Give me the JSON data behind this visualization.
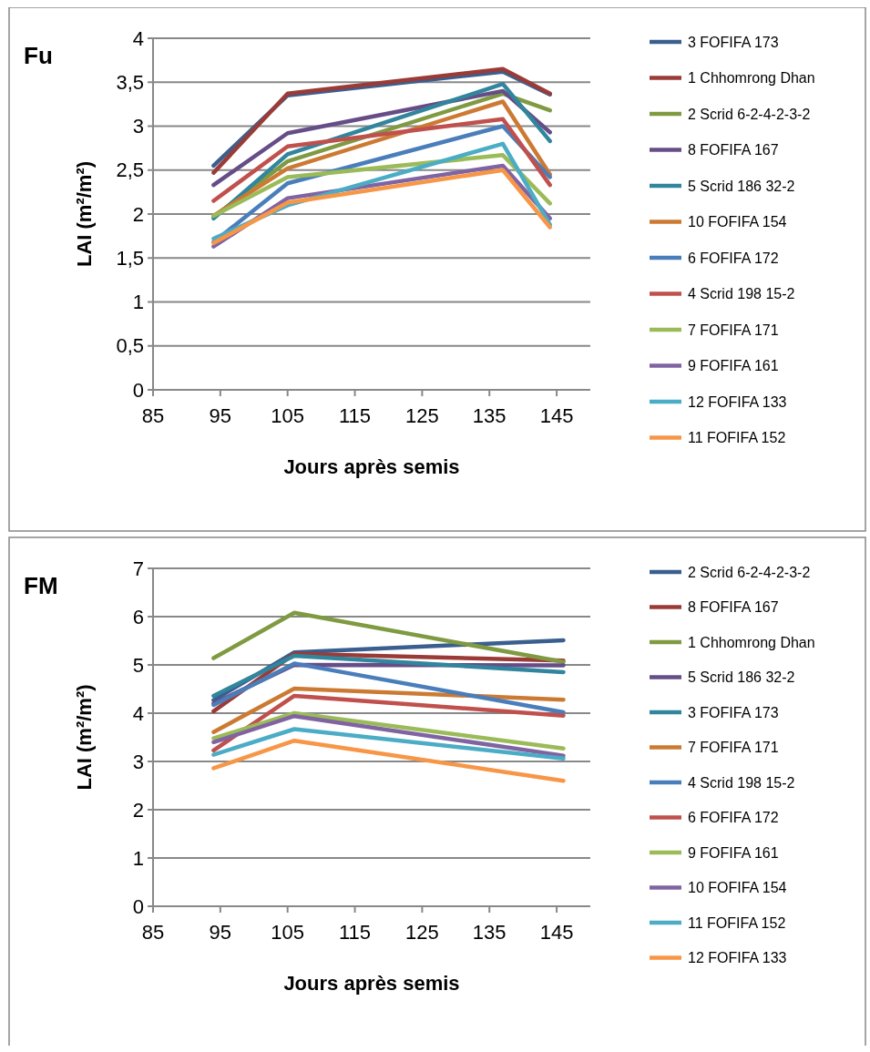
{
  "chart_data": [
    {
      "type": "line",
      "title": "Fu",
      "xlabel": "Jours après semis",
      "ylabel": "LAI (m²/m²)",
      "x": [
        94,
        105,
        137,
        144
      ],
      "xlim": [
        85,
        150
      ],
      "xticks": [
        85,
        95,
        105,
        115,
        125,
        135,
        145
      ],
      "ylim": [
        0,
        4
      ],
      "yticks": [
        0,
        {
          "value": 0.5,
          "label": "0,5"
        },
        1,
        {
          "value": 1.5,
          "label": "1,5"
        },
        2,
        {
          "value": 2.5,
          "label": "2,5"
        },
        3,
        {
          "value": 3.5,
          "label": "3,5"
        },
        4
      ],
      "grid": "y",
      "legend": "right",
      "series": [
        {
          "name": "3 FOFIFA 173",
          "color": "#3a5f8f",
          "values": [
            2.55,
            3.35,
            3.62,
            3.36
          ]
        },
        {
          "name": "1 Chhomrong Dhan",
          "color": "#9b3b37",
          "values": [
            2.47,
            3.37,
            3.65,
            3.37
          ]
        },
        {
          "name": "2 Scrid 6-2-4-2-3-2",
          "color": "#7f9a41",
          "values": [
            1.97,
            2.6,
            3.37,
            3.18
          ]
        },
        {
          "name": "8 FOFIFA 167",
          "color": "#664d88",
          "values": [
            2.33,
            2.92,
            3.4,
            2.93
          ]
        },
        {
          "name": "5 Scrid 186 32-2",
          "color": "#31859c",
          "values": [
            1.95,
            2.68,
            3.48,
            2.83
          ]
        },
        {
          "name": "10 FOFIFA 154",
          "color": "#cc7a33",
          "values": [
            1.98,
            2.52,
            3.28,
            2.45
          ]
        },
        {
          "name": "6 FOFIFA 172",
          "color": "#4a7ebb",
          "values": [
            1.68,
            2.35,
            3.0,
            2.42
          ]
        },
        {
          "name": "4 Scrid 198 15-2",
          "color": "#c0504d",
          "values": [
            2.15,
            2.77,
            3.08,
            2.33
          ]
        },
        {
          "name": "7 FOFIFA 171",
          "color": "#9bbb59",
          "values": [
            1.98,
            2.42,
            2.67,
            2.12
          ]
        },
        {
          "name": "9 FOFIFA 161",
          "color": "#8064a2",
          "values": [
            1.63,
            2.18,
            2.55,
            1.95
          ]
        },
        {
          "name": "12 FOFIFA 133",
          "color": "#4bacc6",
          "values": [
            1.72,
            2.1,
            2.8,
            1.88
          ]
        },
        {
          "name": "11 FOFIFA 152",
          "color": "#f79646",
          "values": [
            1.67,
            2.13,
            2.5,
            1.85
          ]
        }
      ]
    },
    {
      "type": "line",
      "title": "FM",
      "xlabel": "Jours après semis",
      "ylabel": "LAI (m²/m²)",
      "x": [
        94,
        106,
        146
      ],
      "xlim": [
        85,
        150
      ],
      "xticks": [
        85,
        95,
        105,
        115,
        125,
        135,
        145
      ],
      "ylim": [
        0,
        7
      ],
      "yticks": [
        0,
        1,
        2,
        3,
        4,
        5,
        6,
        7
      ],
      "grid": "y",
      "legend": "right",
      "series": [
        {
          "name": "2 Scrid 6-2-4-2-3-2",
          "color": "#3a5f8f",
          "values": [
            4.27,
            5.26,
            5.51
          ]
        },
        {
          "name": "8 FOFIFA 167",
          "color": "#9b3b37",
          "values": [
            4.04,
            5.23,
            5.09
          ]
        },
        {
          "name": "1 Chhomrong Dhan",
          "color": "#7f9a41",
          "values": [
            5.14,
            6.08,
            5.06
          ]
        },
        {
          "name": "5 Scrid 186 32-2",
          "color": "#664d88",
          "values": [
            4.2,
            5.0,
            4.99
          ]
        },
        {
          "name": "3 FOFIFA 173",
          "color": "#31859c",
          "values": [
            4.36,
            5.19,
            4.85
          ]
        },
        {
          "name": "7 FOFIFA 171",
          "color": "#cc7a33",
          "values": [
            3.61,
            4.51,
            4.28
          ]
        },
        {
          "name": "4 Scrid 198 15-2",
          "color": "#4a7ebb",
          "values": [
            4.17,
            5.03,
            4.02
          ]
        },
        {
          "name": "6 FOFIFA 172",
          "color": "#c0504d",
          "values": [
            3.23,
            4.36,
            3.95
          ]
        },
        {
          "name": "9 FOFIFA 161",
          "color": "#9bbb59",
          "values": [
            3.48,
            4.0,
            3.27
          ]
        },
        {
          "name": "10 FOFIFA 154",
          "color": "#8064a2",
          "values": [
            3.4,
            3.94,
            3.12
          ]
        },
        {
          "name": "11 FOFIFA 152",
          "color": "#4bacc6",
          "values": [
            3.14,
            3.67,
            3.06
          ]
        },
        {
          "name": "12 FOFIFA 133",
          "color": "#f79646",
          "values": [
            2.86,
            3.43,
            2.6
          ]
        }
      ]
    }
  ]
}
